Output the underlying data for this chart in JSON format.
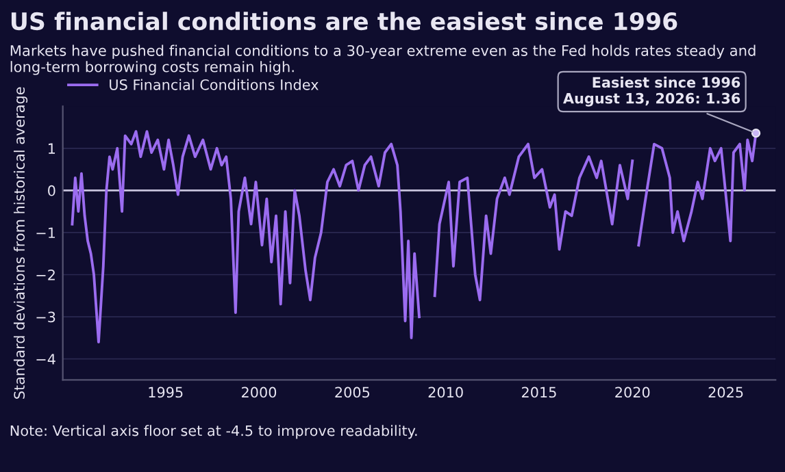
{
  "chart_data": {
    "type": "line",
    "title": "US financial conditions are the easiest since 1996",
    "subtitle": "Markets have pushed financial conditions to a 30-year extreme even as the Fed holds rates steady and long-term borrowing costs remain high.",
    "ylabel": "Standard deviations from historical average",
    "x": [
      "1990-01",
      "1990-03",
      "1990-05",
      "1990-07",
      "1990-09",
      "1990-11",
      "1991-01",
      "1991-03",
      "1991-06",
      "1991-09",
      "1991-11",
      "1992-01",
      "1992-03",
      "1992-06",
      "1992-09",
      "1992-11",
      "1993-03",
      "1993-06",
      "1993-09",
      "1994-01",
      "1994-04",
      "1994-08",
      "1994-12",
      "1995-03",
      "1995-06",
      "1995-09",
      "1995-12",
      "1996-04",
      "1996-08",
      "1997-01",
      "1997-06",
      "1997-10",
      "1998-01",
      "1998-04",
      "1998-07",
      "1998-10",
      "1998-12",
      "1999-04",
      "1999-08",
      "1999-11",
      "2000-03",
      "2000-06",
      "2000-09",
      "2000-12",
      "2001-03",
      "2001-06",
      "2001-09",
      "2001-12",
      "2002-03",
      "2002-07",
      "2002-10",
      "2003-01",
      "2003-05",
      "2003-09",
      "2004-01",
      "2004-05",
      "2004-09",
      "2005-01",
      "2005-05",
      "2005-09",
      "2006-01",
      "2006-06",
      "2006-10",
      "2007-02",
      "2007-06",
      "2007-08",
      "2007-11",
      "2008-01",
      "2008-03",
      "2008-05",
      "2008-08",
      "2008-10",
      "2009-03",
      "2009-06",
      "2009-09",
      "2010-03",
      "2010-06",
      "2010-10",
      "2011-03",
      "2011-08",
      "2011-11",
      "2012-03",
      "2012-06",
      "2012-10",
      "2013-03",
      "2013-06",
      "2013-12",
      "2014-06",
      "2014-10",
      "2015-03",
      "2015-08",
      "2015-11",
      "2016-02",
      "2016-06",
      "2016-10",
      "2017-03",
      "2017-09",
      "2018-02",
      "2018-05",
      "2018-12",
      "2019-05",
      "2019-10",
      "2020-01",
      "2020-03",
      "2020-05",
      "2020-09",
      "2021-03",
      "2021-08",
      "2022-01",
      "2022-03",
      "2022-06",
      "2022-10",
      "2023-03",
      "2023-07",
      "2023-10",
      "2024-03",
      "2024-06",
      "2024-10",
      "2025-04",
      "2025-06",
      "2025-10",
      "2026-01",
      "2026-03",
      "2026-06",
      "2026-08-13"
    ],
    "series": [
      {
        "name": "US Financial Conditions Index",
        "color": "#9b6cf0",
        "values": [
          -0.8,
          0.3,
          -0.5,
          0.4,
          -0.6,
          -1.2,
          -1.5,
          -2.0,
          -3.6,
          -1.8,
          0.0,
          0.8,
          0.5,
          1.0,
          -0.5,
          1.3,
          1.1,
          1.4,
          0.8,
          1.4,
          0.9,
          1.2,
          0.5,
          1.2,
          0.6,
          -0.1,
          0.8,
          1.3,
          0.8,
          1.2,
          0.5,
          1.0,
          0.6,
          0.8,
          -0.2,
          -2.9,
          -0.5,
          0.3,
          -0.8,
          0.2,
          -1.3,
          -0.2,
          -1.7,
          -0.6,
          -2.7,
          -0.5,
          -2.2,
          0.0,
          -0.6,
          -1.9,
          -2.6,
          -1.6,
          -1.0,
          0.2,
          0.5,
          0.1,
          0.6,
          0.7,
          0.0,
          0.6,
          0.8,
          0.1,
          0.9,
          1.1,
          0.6,
          -0.5,
          -3.1,
          -1.2,
          -3.5,
          -1.5,
          -3.0,
          null,
          null,
          -2.5,
          -0.8,
          0.2,
          -1.8,
          0.2,
          0.3,
          -2.0,
          -2.6,
          -0.6,
          -1.5,
          -0.2,
          0.3,
          -0.1,
          0.8,
          1.1,
          0.3,
          0.5,
          -0.4,
          -0.1,
          -1.4,
          -0.5,
          -0.6,
          0.3,
          0.8,
          0.3,
          0.7,
          -0.8,
          0.6,
          -0.2,
          0.7,
          null,
          -1.3,
          -0.3,
          1.1,
          1.0,
          0.3,
          -1.0,
          -0.5,
          -1.2,
          -0.5,
          0.2,
          -0.2,
          1.0,
          0.7,
          1.0,
          -1.2,
          0.9,
          1.1,
          0.0,
          1.2,
          0.7,
          1.36
        ]
      }
    ],
    "xlim": [
      "1989-07",
      "2027-09"
    ],
    "xticks": [
      "1995",
      "2000",
      "2005",
      "2010",
      "2015",
      "2020",
      "2025"
    ],
    "ylim": [
      -4.5,
      2
    ],
    "yticks": [
      -4,
      -3,
      -2,
      -1,
      0,
      1
    ],
    "grid": "y",
    "legend": "top left",
    "ref_lines": [
      {
        "axis": "y",
        "value": 0,
        "color": "#c8c4dc"
      }
    ],
    "annotations": [
      {
        "text": "Easiest since 1996\nAugust 13, 2026: 1.36",
        "x": "2026-08-13",
        "y": 1.36
      },
      "Note: Vertical axis floor set at -4.5 to improve readability."
    ]
  }
}
